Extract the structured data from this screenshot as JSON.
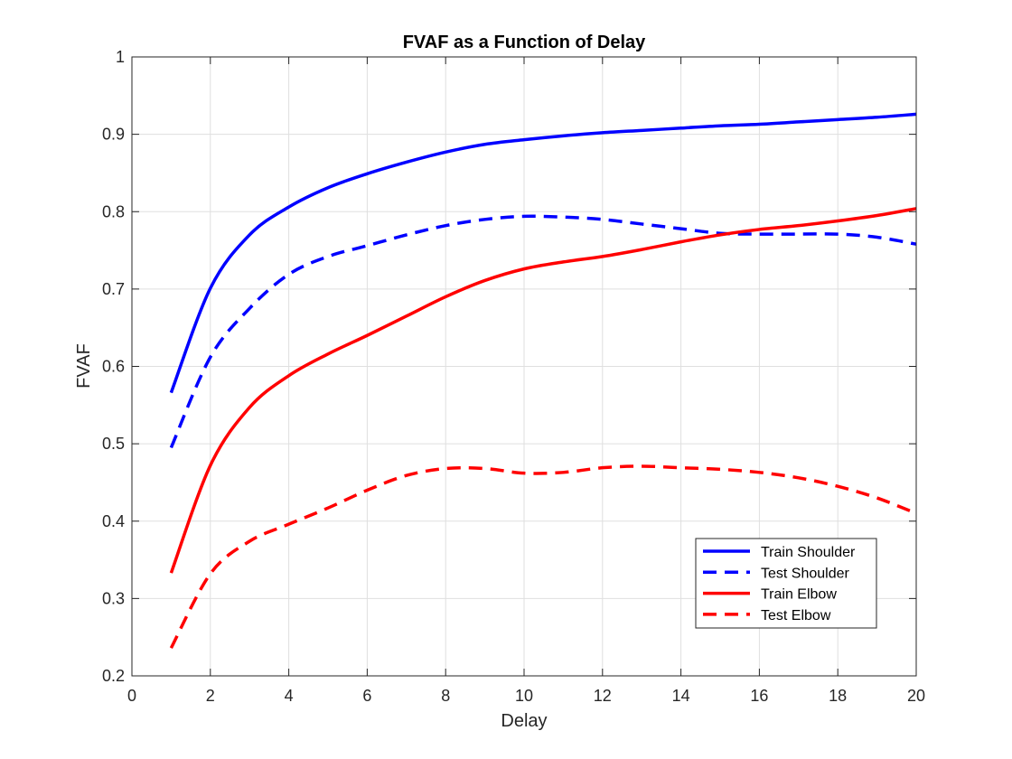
{
  "chart_data": {
    "type": "line",
    "title": "FVAF as a Function of Delay",
    "xlabel": "Delay",
    "ylabel": "FVAF",
    "xlim": [
      0,
      20
    ],
    "ylim": [
      0.2,
      1
    ],
    "xticks": [
      0,
      2,
      4,
      6,
      8,
      10,
      12,
      14,
      16,
      18,
      20
    ],
    "yticks": [
      0.2,
      0.3,
      0.4,
      0.5,
      0.6,
      0.7,
      0.8,
      0.9,
      1
    ],
    "ytick_labels": [
      "0.2",
      "0.3",
      "0.4",
      "0.5",
      "0.6",
      "0.7",
      "0.8",
      "0.9",
      "1"
    ],
    "grid": true,
    "legend_position": "bottom-right",
    "x": [
      1,
      2,
      3,
      4,
      5,
      6,
      7,
      8,
      9,
      10,
      11,
      12,
      13,
      14,
      15,
      16,
      17,
      18,
      19,
      20
    ],
    "series": [
      {
        "name": "Train Shoulder",
        "color": "#0000ff",
        "dash": "solid",
        "values": [
          0.566,
          0.701,
          0.77,
          0.806,
          0.831,
          0.849,
          0.864,
          0.877,
          0.887,
          0.893,
          0.898,
          0.902,
          0.905,
          0.908,
          0.911,
          0.913,
          0.916,
          0.919,
          0.922,
          0.926
        ]
      },
      {
        "name": "Test Shoulder",
        "color": "#0000ff",
        "dash": "dashed",
        "values": [
          0.495,
          0.612,
          0.675,
          0.719,
          0.742,
          0.756,
          0.77,
          0.782,
          0.79,
          0.794,
          0.793,
          0.79,
          0.784,
          0.778,
          0.772,
          0.771,
          0.771,
          0.771,
          0.767,
          0.758
        ]
      },
      {
        "name": "Train Elbow",
        "color": "#ff0000",
        "dash": "solid",
        "values": [
          0.333,
          0.472,
          0.547,
          0.588,
          0.616,
          0.64,
          0.665,
          0.69,
          0.711,
          0.726,
          0.735,
          0.742,
          0.751,
          0.761,
          0.77,
          0.777,
          0.782,
          0.788,
          0.795,
          0.804
        ]
      },
      {
        "name": "Test Elbow",
        "color": "#ff0000",
        "dash": "dashed",
        "values": [
          0.236,
          0.332,
          0.374,
          0.396,
          0.417,
          0.44,
          0.459,
          0.468,
          0.468,
          0.462,
          0.463,
          0.469,
          0.471,
          0.469,
          0.467,
          0.463,
          0.456,
          0.445,
          0.43,
          0.41
        ]
      }
    ]
  }
}
